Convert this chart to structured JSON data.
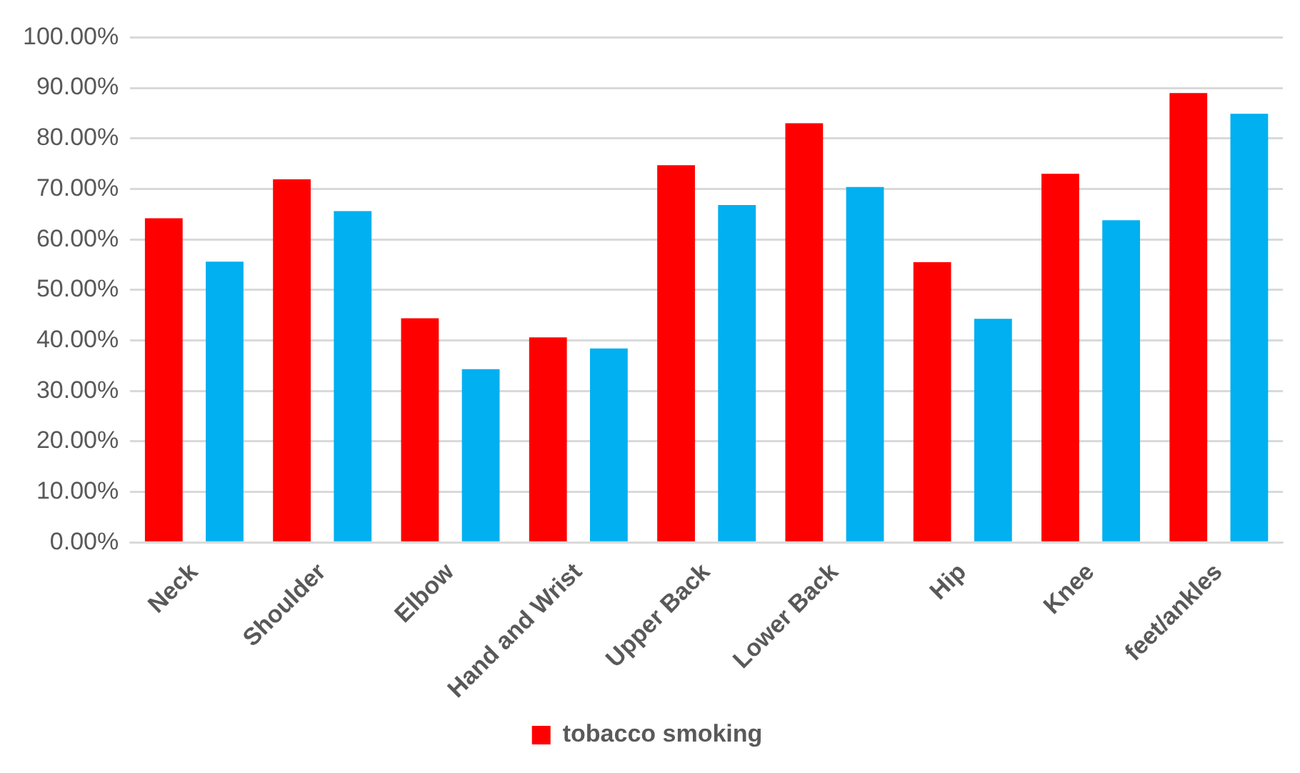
{
  "chart_data": {
    "type": "bar",
    "categories": [
      "Neck",
      "Shoulder",
      "Elbow",
      "Hand and Wrist",
      "Upper Back",
      "Lower Back",
      "Hip",
      "Knee",
      "feet/ankles"
    ],
    "series": [
      {
        "name": "tobacco smoking",
        "color": "#ff0000",
        "values": [
          64.2,
          71.9,
          44.4,
          40.6,
          74.7,
          83.0,
          55.5,
          73.0,
          89.0
        ]
      },
      {
        "color": "#00b0f0",
        "values": [
          55.6,
          65.6,
          34.3,
          38.4,
          66.8,
          70.4,
          44.3,
          63.8,
          84.9
        ]
      }
    ],
    "ylim": [
      0,
      100
    ],
    "yticks": [
      {
        "value": 0,
        "label": "0.00%"
      },
      {
        "value": 10,
        "label": "10.00%"
      },
      {
        "value": 20,
        "label": "20.00%"
      },
      {
        "value": 30,
        "label": "30.00%"
      },
      {
        "value": 40,
        "label": "40.00%"
      },
      {
        "value": 50,
        "label": "50.00%"
      },
      {
        "value": 60,
        "label": "60.00%"
      },
      {
        "value": 70,
        "label": "70.00%"
      },
      {
        "value": 80,
        "label": "80.00%"
      },
      {
        "value": 90,
        "label": "90.00%"
      },
      {
        "value": 100,
        "label": "100.00%"
      }
    ],
    "grid": "y",
    "legend": "bottom"
  }
}
